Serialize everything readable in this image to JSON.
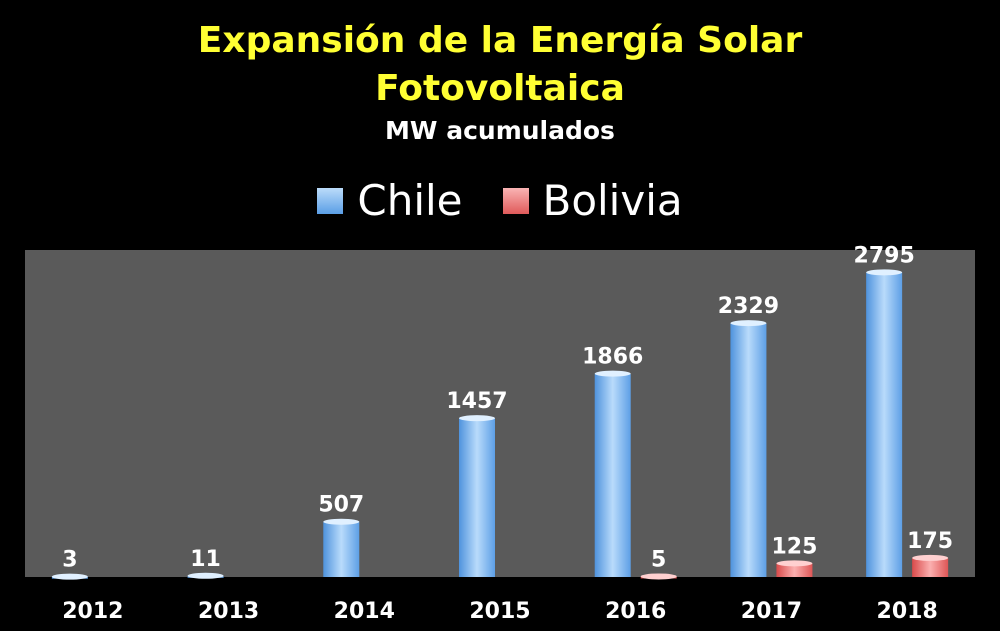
{
  "chart_data": {
    "type": "bar",
    "title": "Expansión de la Energía Solar Fotovoltaica",
    "title_lines": [
      "Expansión de la Energía Solar",
      "Fotovoltaica"
    ],
    "subtitle": "MW acumulados",
    "xlabel": "",
    "ylabel": "",
    "categories": [
      "2012",
      "2013",
      "2014",
      "2015",
      "2016",
      "2017",
      "2018"
    ],
    "series": [
      {
        "name": "Chile",
        "values": [
          3,
          11,
          507,
          1457,
          1866,
          2329,
          2795
        ],
        "labels": [
          "3",
          "11",
          "507",
          "1457",
          "1866",
          "2329",
          "2795"
        ],
        "color": "#7fb6ee"
      },
      {
        "name": "Bolivia",
        "values": [
          null,
          null,
          null,
          null,
          5,
          125,
          175
        ],
        "labels": [
          "",
          "",
          "",
          "",
          "5",
          "125",
          "175"
        ],
        "color": "#ee6b6b"
      }
    ],
    "ylim": [
      0,
      3000
    ],
    "grid": false,
    "legend_position": "top",
    "plot_background": "#5a5a5a",
    "title_color": "#ffff33"
  }
}
